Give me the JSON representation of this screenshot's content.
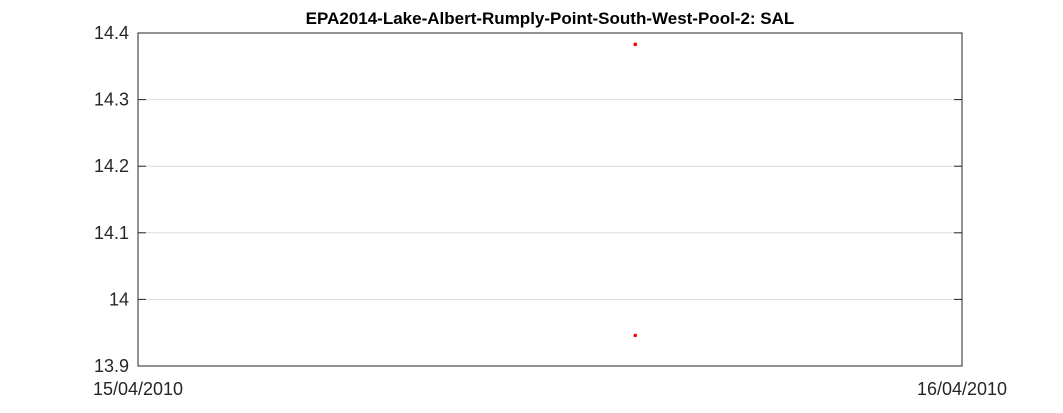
{
  "chart_data": {
    "type": "scatter",
    "title": "EPA2014-Lake-Albert-Rumply-Point-South-West-Pool-2: SAL",
    "xlabel": "",
    "ylabel": "",
    "xlim": [
      "15/04/2010 00:00",
      "16/04/2010 00:00"
    ],
    "ylim": [
      13.9,
      14.4
    ],
    "x_tick_labels": [
      "15/04/2010",
      "16/04/2010"
    ],
    "y_ticks": [
      13.9,
      14,
      14.1,
      14.2,
      14.3,
      14.4
    ],
    "y_tick_labels": [
      "13.9",
      "14",
      "14.1",
      "14.2",
      "14.3",
      "14.4"
    ],
    "grid": true,
    "marker_color": "#ff0000",
    "series": [
      {
        "x": [
          "15/04/2010 14:29",
          "15/04/2010 14:29"
        ],
        "y": [
          14.383,
          13.946
        ]
      }
    ]
  }
}
